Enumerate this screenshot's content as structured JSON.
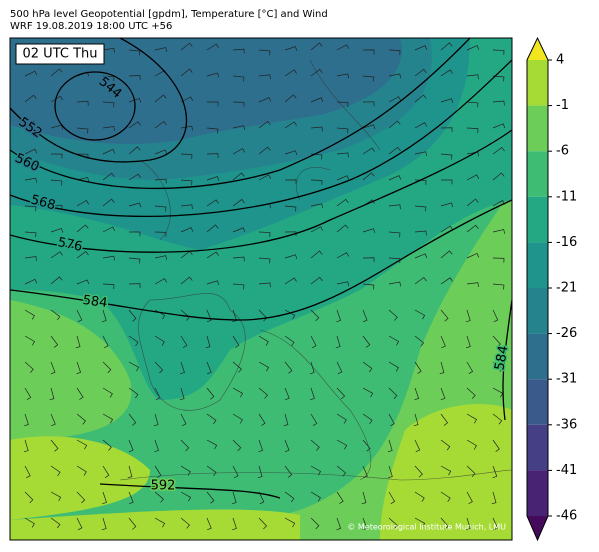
{
  "header": {
    "title": "500 hPa level Geopotential [gpdm], Temperature [°C] and Wind",
    "subtitle": "WRF 19.08.2019 18:00 UTC +56"
  },
  "map": {
    "time_label": "02 UTC Thu",
    "contour_labels": [
      "544",
      "552",
      "560",
      "568",
      "576",
      "584",
      "584",
      "592"
    ],
    "credit": "© Meteorological Institute Munich, LMU"
  },
  "colorbar": {
    "ticks": [
      4,
      -1,
      -6,
      -11,
      -16,
      -21,
      -26,
      -31,
      -36,
      -41,
      -46
    ],
    "colors": [
      "#a6db35",
      "#6cce59",
      "#3ebc73",
      "#24a884",
      "#1f948c",
      "#25838e",
      "#2e6f8e",
      "#3a5a8c",
      "#453f86",
      "#482273"
    ],
    "over_color": "#f0e51f",
    "under_color": "#450a5c"
  }
}
